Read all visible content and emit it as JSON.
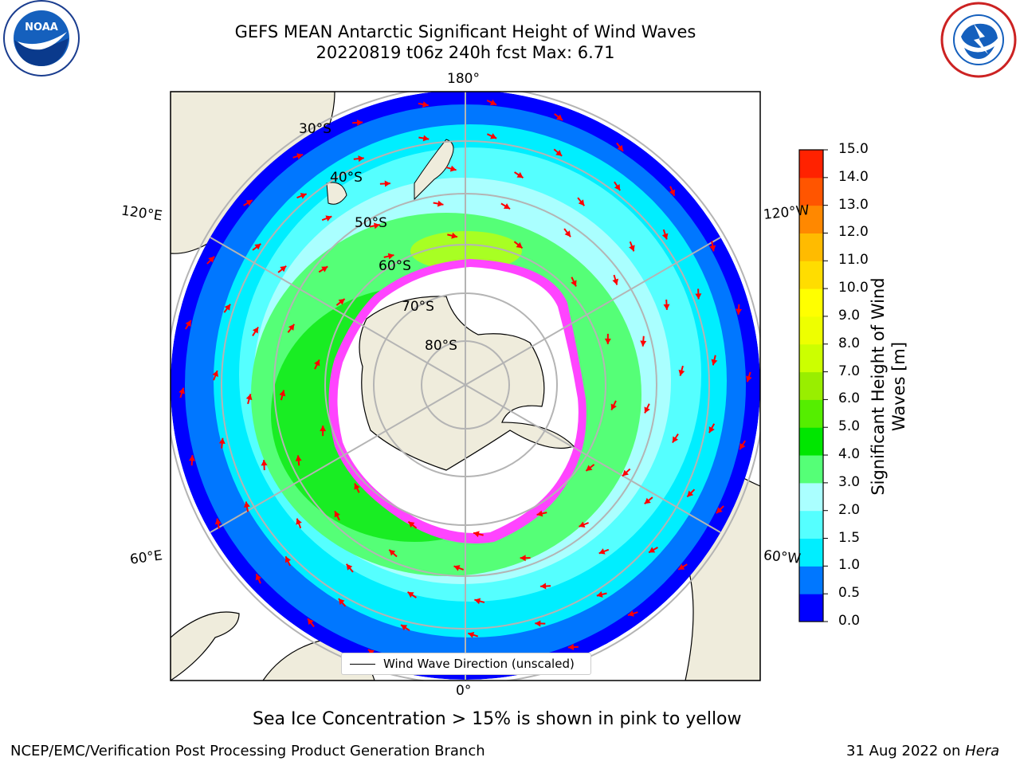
{
  "title": {
    "line1": "GEFS MEAN Antarctic Significant Height of Wind Waves",
    "line2": "20220819 t06z 240h fcst   Max: 6.71"
  },
  "map": {
    "projection": "south-polar-stereographic",
    "lon_labels": {
      "top": "180°",
      "bottom": "0°",
      "upper_left": "120°E",
      "lower_left": "60°E",
      "upper_right": "120°W",
      "lower_right": "60°W"
    },
    "lat_labels": [
      "30°S",
      "40°S",
      "50°S",
      "60°S",
      "70°S",
      "80°S"
    ],
    "legend_label": "Wind Wave Direction (unscaled)",
    "colors": {
      "land": "#efecdc",
      "ocean_low": "#0000ff",
      "ocean_mid": "#00f0ff",
      "ocean_high": "#33ff33",
      "sea_ice": "#ff44ff",
      "arrow": "#ff0000"
    }
  },
  "colorbar": {
    "ticks": [
      "15.0",
      "14.0",
      "13.0",
      "12.0",
      "11.0",
      "10.0",
      "9.0",
      "8.0",
      "7.0",
      "6.0",
      "5.0",
      "4.0",
      "3.0",
      "2.0",
      "1.5",
      "1.0",
      "0.5",
      "0.0"
    ],
    "colors_bottom_to_top": [
      "#0000ff",
      "#0077ff",
      "#00eeff",
      "#55ffff",
      "#aaffff",
      "#55ff77",
      "#00e600",
      "#55ee00",
      "#99ee00",
      "#ccff00",
      "#eeff00",
      "#ffff00",
      "#ffdd00",
      "#ffbb00",
      "#ff8800",
      "#ff5500",
      "#ff2200"
    ],
    "label": "Significant Height of Wind Waves [m]"
  },
  "caption": "Sea Ice Concentration > 15% is shown in pink to yellow",
  "footer": {
    "left": "NCEP/EMC/Verification Post Processing Product Generation Branch",
    "right_date": "31 Aug 2022 on ",
    "right_host": "Hera"
  },
  "logos": {
    "left": "NOAA",
    "right": "NATIONAL WEATHER SERVICE"
  }
}
